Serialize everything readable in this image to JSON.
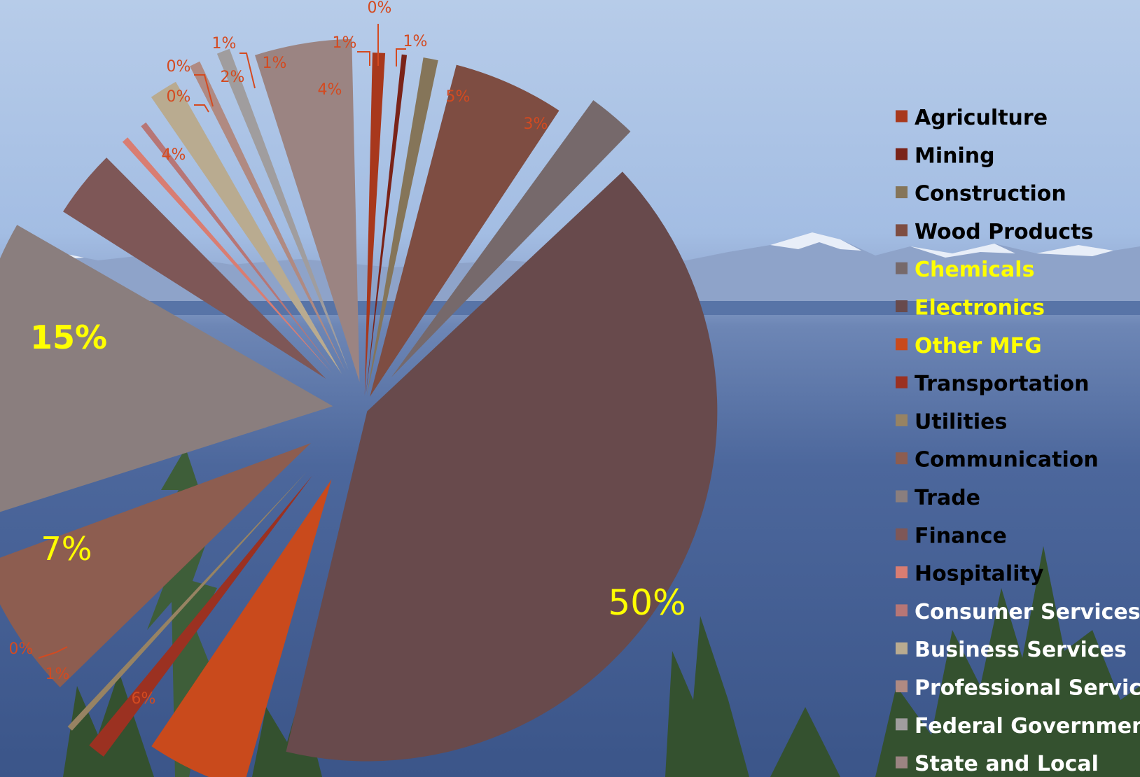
{
  "chart_data": {
    "type": "pie",
    "categories": [
      "Agriculture",
      "Mining",
      "Construction",
      "Wood Products",
      "Chemicals",
      "Electronics",
      "Other MFG",
      "Transportation",
      "Utilities",
      "Communication",
      "Trade",
      "Finance",
      "Hospitality",
      "Consumer Services",
      "Business Services",
      "Professional Services",
      "Federal Government",
      "State and Local"
    ],
    "values": [
      1,
      0,
      1,
      5,
      3,
      50,
      6,
      1,
      0,
      7,
      15,
      4,
      0,
      0,
      2,
      1,
      1,
      4
    ],
    "labels": [
      "1%",
      "0%",
      "1%",
      "5%",
      "3%",
      "50%",
      "6%",
      "1%",
      "0%",
      "7%",
      "15%",
      "4%",
      "0%",
      "0%",
      "2%",
      "1%",
      "1%",
      "4%"
    ],
    "colors": [
      "#a8381c",
      "#7a2318",
      "#857559",
      "#7e4d42",
      "#76696b",
      "#684a4c",
      "#c94a1c",
      "#9b3121",
      "#978363",
      "#8d5d50",
      "#8a7e7e",
      "#7e5757",
      "#d97d72",
      "#b77676",
      "#b9ab90",
      "#b08a82",
      "#a09d9e",
      "#9b8482"
    ],
    "legend_position": "right",
    "legend_label_colors": [
      "#000000",
      "#000000",
      "#000000",
      "#000000",
      "#ffff00",
      "#ffff00",
      "#ffff00",
      "#000000",
      "#000000",
      "#000000",
      "#000000",
      "#000000",
      "#000000",
      "#ffffff",
      "#ffffff",
      "#ffffff",
      "#ffffff",
      "#ffffff"
    ],
    "data_label_colors": [
      "#d44a20",
      "#d44a20",
      "#d44a20",
      "#d44a20",
      "#d44a20",
      "#ffff00",
      "#d44a20",
      "#d44a20",
      "#d44a20",
      "#ffff00",
      "#ffff00",
      "#d44a20",
      "#d44a20",
      "#d44a20",
      "#d44a20",
      "#d44a20",
      "#d44a20",
      "#d44a20"
    ]
  }
}
